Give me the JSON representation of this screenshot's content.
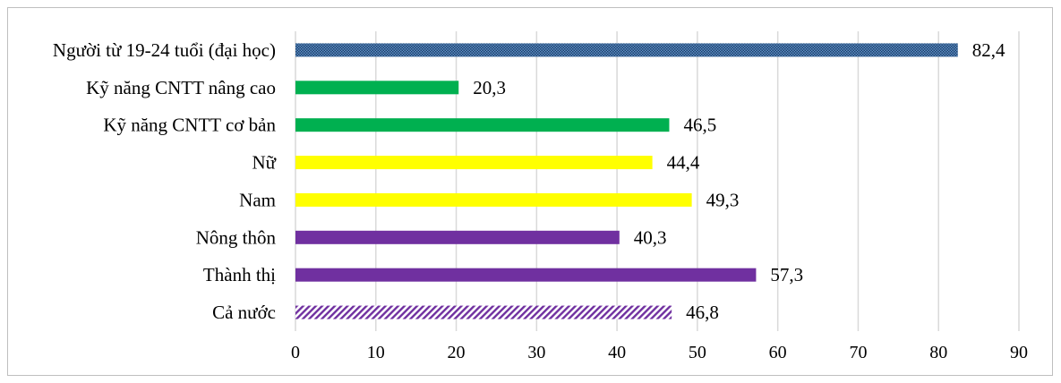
{
  "chart_data": {
    "type": "bar",
    "orientation": "horizontal",
    "categories": [
      "Người từ 19-24 tuổi (đại học)",
      "Kỹ năng CNTT nâng cao",
      "Kỹ năng CNTT cơ bản",
      "Nữ",
      "Nam",
      "Nông thôn",
      "Thành thị",
      "Cả nước"
    ],
    "values": [
      82.4,
      20.3,
      46.5,
      44.4,
      49.3,
      40.3,
      57.3,
      46.8
    ],
    "value_labels": [
      "82,4",
      "20,3",
      "46,5",
      "44,4",
      "49,3",
      "40,3",
      "57,3",
      "46,8"
    ],
    "bar_colors": [
      "#2e5c8a",
      "#00b050",
      "#00b050",
      "#ffff00",
      "#ffff00",
      "#7030a0",
      "#7030a0",
      "#7030a0"
    ],
    "bar_patterns": [
      "dots",
      "solid",
      "solid",
      "solid",
      "solid",
      "solid",
      "solid",
      "diagonal"
    ],
    "xlim": [
      0,
      90
    ],
    "xticks": [
      0,
      10,
      20,
      30,
      40,
      50,
      60,
      70,
      80,
      90
    ],
    "grid": true,
    "legend": "none"
  }
}
